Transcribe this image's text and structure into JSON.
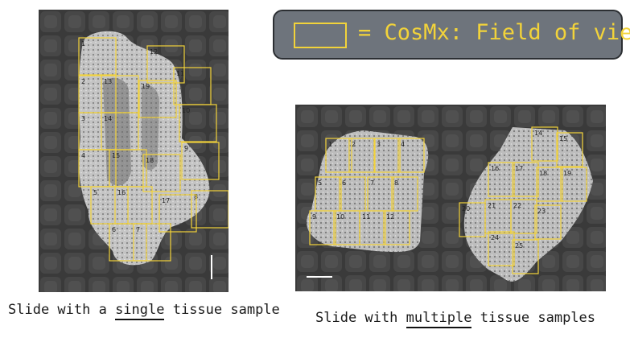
{
  "legend": {
    "text": "= CosMx: Field of view",
    "color": "#f2d33a",
    "background": "#6e747c"
  },
  "left_slide": {
    "fov_labels": [
      "1",
      "2",
      "3",
      "4",
      "5",
      "6",
      "7",
      "8",
      "9",
      "10",
      "11",
      "12",
      "13",
      "14",
      "15",
      "16",
      "17",
      "18",
      "19"
    ],
    "caption": {
      "before": "Slide with a ",
      "emph": "single",
      "after": " tissue sample"
    }
  },
  "right_slide": {
    "fov_labels": [
      "1",
      "2",
      "3",
      "4",
      "5",
      "6",
      "7",
      "8",
      "9",
      "10",
      "11",
      "12",
      "14",
      "15",
      "16",
      "17",
      "18",
      "19",
      "20",
      "21",
      "22",
      "23",
      "24",
      "25"
    ],
    "caption": {
      "before": "Slide with ",
      "emph": "multiple",
      "after": " tissue samples"
    }
  }
}
